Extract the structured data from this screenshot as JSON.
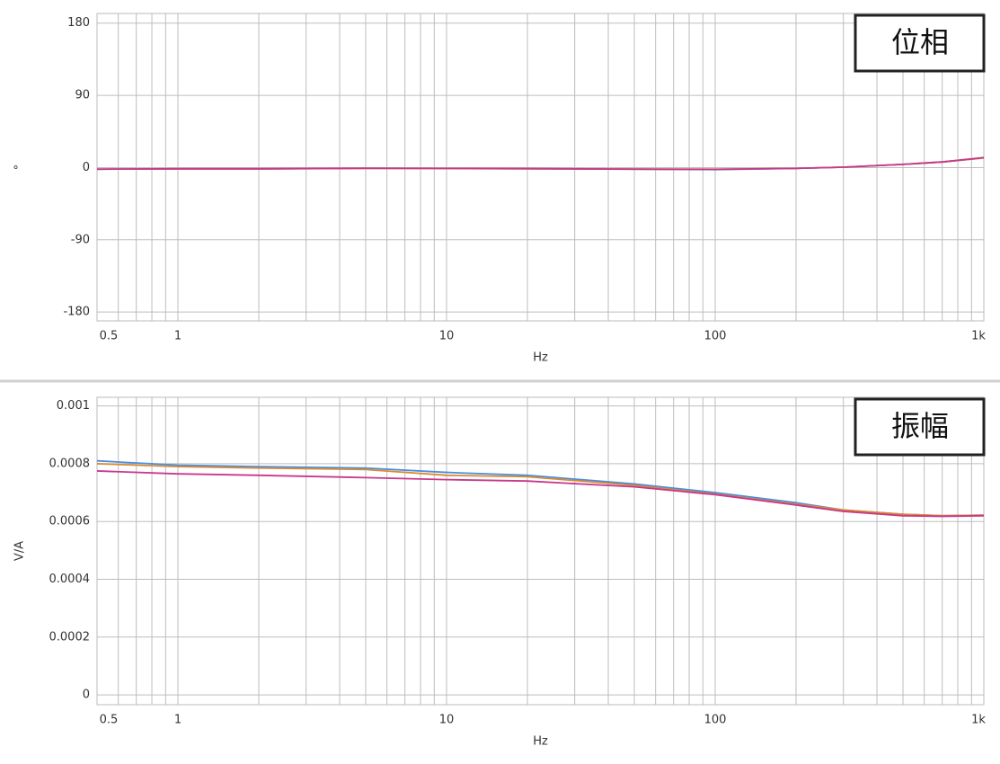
{
  "chart_data": [
    {
      "type": "line",
      "annotation": "位相",
      "ylabel": "°",
      "xlabel": "Hz",
      "xscale": "log",
      "grid": true,
      "xlim": [
        0.5,
        1000
      ],
      "xticks": [
        0.5,
        1,
        10,
        100,
        {
          "value": 1000,
          "label": "1k"
        }
      ],
      "xminorticks": [
        0.6,
        0.7,
        0.8,
        0.9,
        2,
        3,
        4,
        5,
        6,
        7,
        8,
        9,
        20,
        30,
        40,
        50,
        60,
        70,
        80,
        90,
        200,
        300,
        400,
        500,
        600,
        700,
        800,
        900
      ],
      "ylim": [
        -191,
        192
      ],
      "yticks": [
        -180,
        -90,
        0,
        90,
        180
      ],
      "x": [
        0.5,
        1,
        2,
        5,
        10,
        20,
        50,
        100,
        200,
        300,
        500,
        700,
        1000
      ],
      "series": [
        {
          "color": "#4a8ee0",
          "values": [
            -2,
            -1.5,
            -1.5,
            -1,
            -1,
            -1.5,
            -2,
            -2.5,
            -1,
            0.5,
            4,
            7,
            12
          ]
        },
        {
          "color": "#d98a30",
          "values": [
            -2,
            -1.5,
            -1.5,
            -1,
            -1.2,
            -1.5,
            -1.8,
            -2,
            -1,
            0.5,
            4,
            7,
            12
          ]
        },
        {
          "color": "#c8388c",
          "values": [
            -2,
            -1.5,
            -1.5,
            -0.8,
            -1,
            -1.2,
            -2,
            -2.2,
            -1,
            0.5,
            4,
            7,
            12.5
          ]
        }
      ]
    },
    {
      "type": "line",
      "annotation": "振幅",
      "ylabel": "V/A",
      "xlabel": "Hz",
      "xscale": "log",
      "grid": true,
      "xlim": [
        0.5,
        1000
      ],
      "xticks": [
        0.5,
        1,
        10,
        100,
        {
          "value": 1000,
          "label": "1k"
        }
      ],
      "xminorticks": [
        0.6,
        0.7,
        0.8,
        0.9,
        2,
        3,
        4,
        5,
        6,
        7,
        8,
        9,
        20,
        30,
        40,
        50,
        60,
        70,
        80,
        90,
        200,
        300,
        400,
        500,
        600,
        700,
        800,
        900
      ],
      "ylim": [
        -3.4e-05,
        0.00103
      ],
      "yticks": [
        0,
        0.0002,
        0.0004,
        0.0006,
        0.0008,
        0.001
      ],
      "x": [
        0.5,
        1,
        2,
        5,
        10,
        20,
        50,
        100,
        200,
        300,
        500,
        700,
        1000
      ],
      "series": [
        {
          "color": "#4a8ee0",
          "values": [
            0.00081,
            0.000795,
            0.00079,
            0.000785,
            0.00077,
            0.00076,
            0.00073,
            0.0007,
            0.000665,
            0.00064,
            0.000625,
            0.00062,
            0.000622
          ]
        },
        {
          "color": "#d98a30",
          "values": [
            0.0008,
            0.00079,
            0.000785,
            0.00078,
            0.00076,
            0.000755,
            0.000725,
            0.000695,
            0.00066,
            0.00064,
            0.000625,
            0.00062,
            0.000622
          ]
        },
        {
          "color": "#c8388c",
          "values": [
            0.000775,
            0.000765,
            0.00076,
            0.000752,
            0.000745,
            0.00074,
            0.00072,
            0.000693,
            0.000657,
            0.000635,
            0.00062,
            0.000618,
            0.00062
          ]
        }
      ]
    }
  ]
}
